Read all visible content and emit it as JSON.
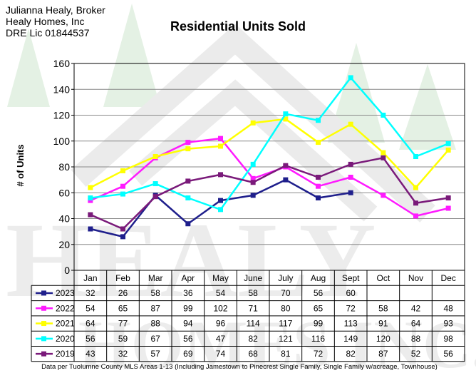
{
  "header": {
    "name": "Julianna Healy, Broker",
    "company": "Healy Homes, Inc",
    "license": "DRE Lic 01844537"
  },
  "watermark": {
    "text": "HEALY HOMES INC."
  },
  "footnote": "Data per Tuolumne County MLS Areas 1-13 (Including Jamestown to Pinecrest Single Family, Single Family w/acreage, Townhouse)",
  "chart_data": {
    "type": "line",
    "title": "Residential Units Sold",
    "xlabel": "",
    "ylabel": "# of Units",
    "ylim": [
      0,
      160
    ],
    "yticks": [
      0,
      20,
      40,
      60,
      80,
      100,
      120,
      140,
      160
    ],
    "grid": true,
    "legend": "data table below chart",
    "categories": [
      "Jan",
      "Feb",
      "Mar",
      "Apr",
      "May",
      "June",
      "July",
      "Aug",
      "Sept",
      "Oct",
      "Nov",
      "Dec"
    ],
    "series": [
      {
        "name": "2023",
        "color": "#1f1f8c",
        "values": [
          32,
          26,
          58,
          36,
          54,
          58,
          70,
          56,
          60,
          null,
          null,
          null
        ]
      },
      {
        "name": "2022",
        "color": "#ff1aff",
        "values": [
          54,
          65,
          87,
          99,
          102,
          71,
          80,
          65,
          72,
          58,
          42,
          48
        ]
      },
      {
        "name": "2021",
        "color": "#ffff00",
        "values": [
          64,
          77,
          88,
          94,
          96,
          114,
          117,
          99,
          113,
          91,
          64,
          93
        ]
      },
      {
        "name": "2020",
        "color": "#00ffff",
        "values": [
          56,
          59,
          67,
          56,
          47,
          82,
          121,
          116,
          149,
          120,
          88,
          98
        ]
      },
      {
        "name": "2019",
        "color": "#7a1a7a",
        "values": [
          43,
          32,
          57,
          69,
          74,
          68,
          81,
          72,
          82,
          87,
          52,
          56
        ]
      }
    ]
  }
}
